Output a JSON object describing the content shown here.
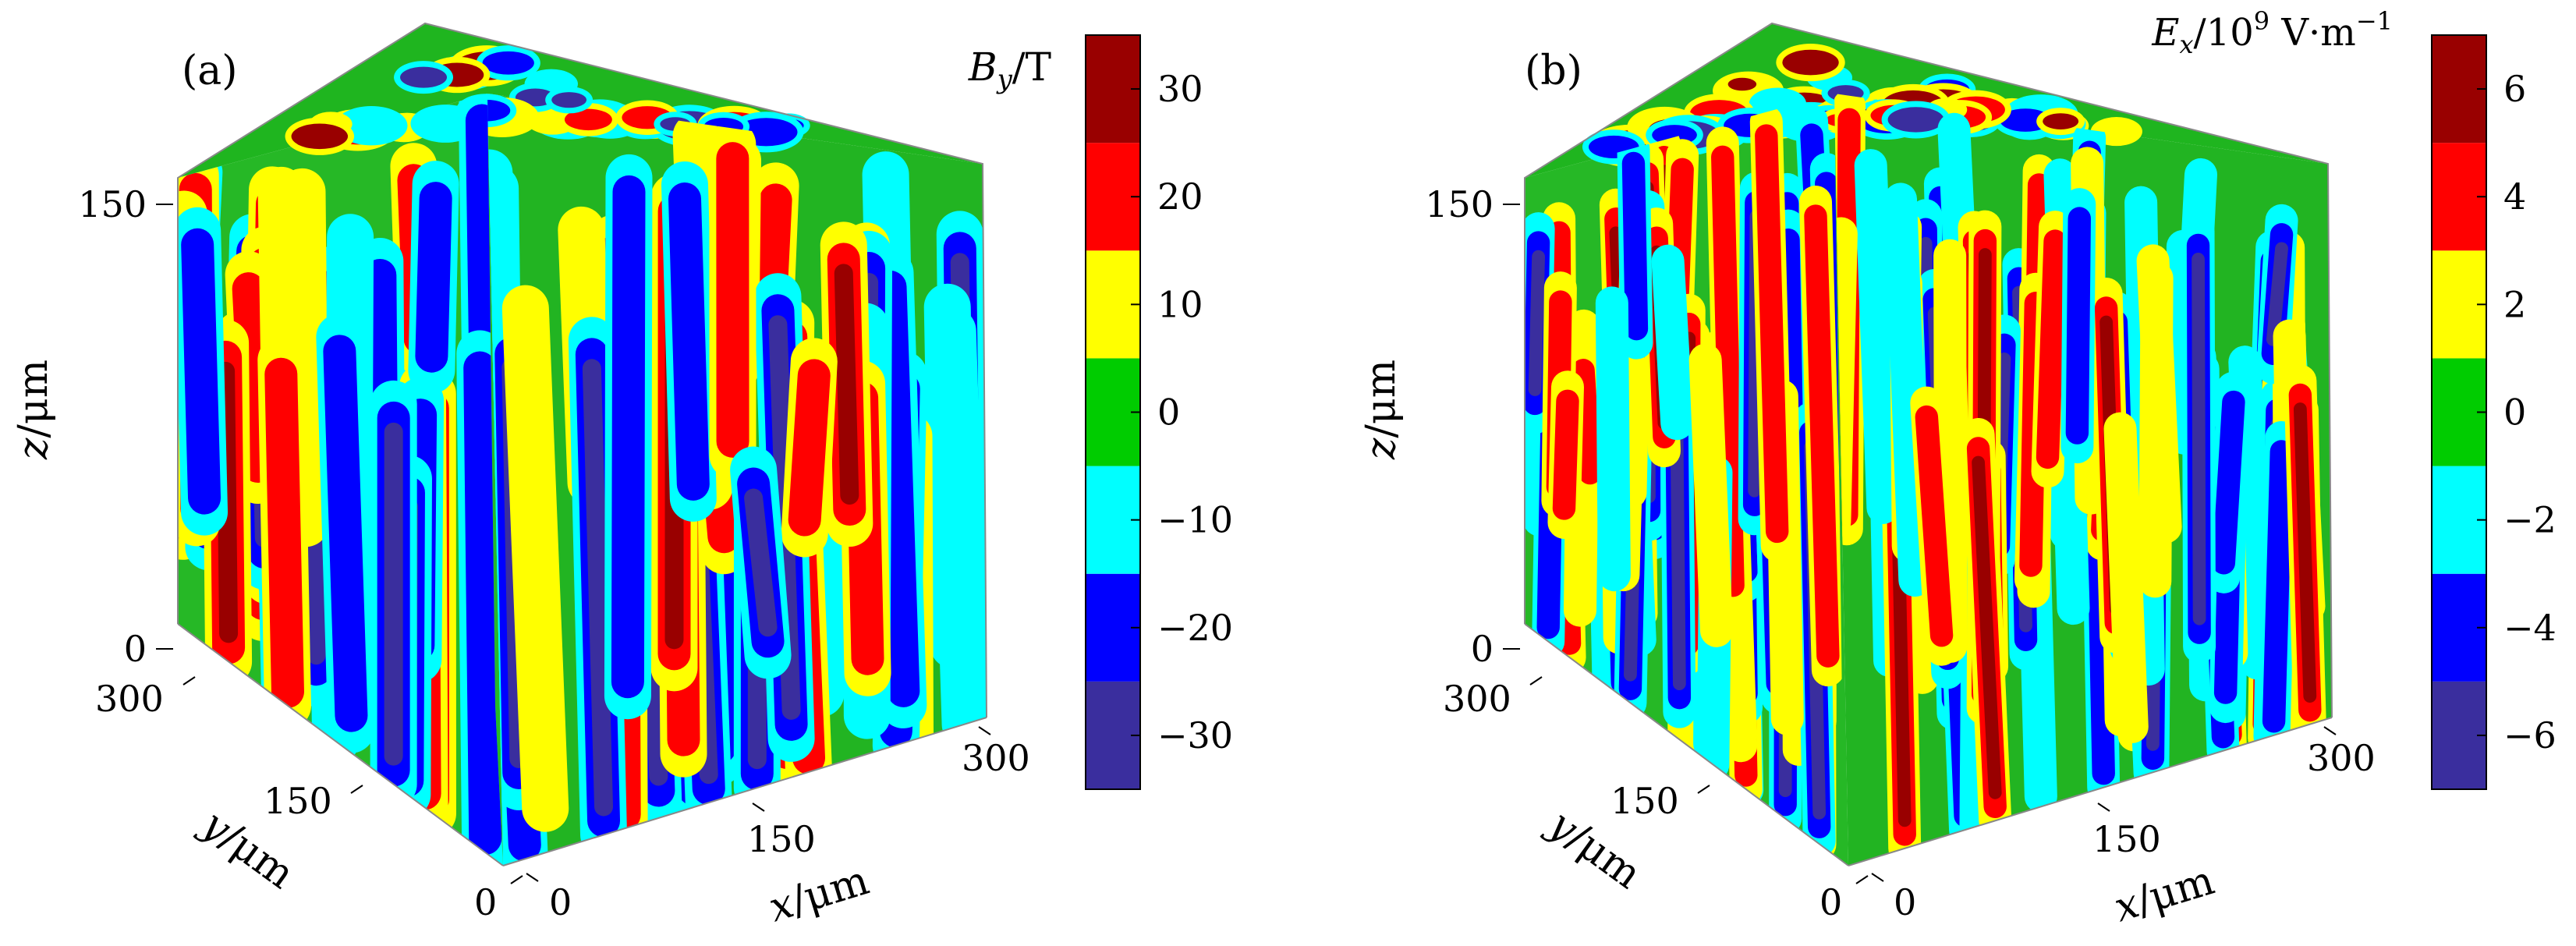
{
  "chart_data": [
    {
      "type": "heatmap",
      "panel_label": "(a)",
      "colorbar_title": "B_y/T",
      "colorbar_title_parts": {
        "sym": "B",
        "sub": "y",
        "unit": "/T"
      },
      "colorbar_levels": [
        -35,
        -25,
        -15,
        -5,
        5,
        15,
        25,
        35
      ],
      "colorbar_ticks": [
        30,
        20,
        10,
        0,
        -10,
        -20,
        -30
      ],
      "colorbar_tick_labels": [
        "30",
        "20",
        "10",
        "0",
        "−10",
        "−20",
        "−30"
      ],
      "x_axis": {
        "label": "x/μm",
        "ticks": [
          0,
          150,
          300
        ],
        "tick_labels": [
          "0",
          "150",
          "300"
        ]
      },
      "y_axis": {
        "label": "y/μm",
        "ticks": [
          0,
          150,
          300
        ],
        "tick_labels": [
          "0",
          "150",
          "300"
        ]
      },
      "z_axis": {
        "label": "z/μm",
        "ticks": [
          0,
          150
        ],
        "tick_labels": [
          "0",
          "150"
        ]
      }
    },
    {
      "type": "heatmap",
      "panel_label": "(b)",
      "colorbar_title": "E_x/10^9 V·m^-1",
      "colorbar_title_parts": {
        "sym": "E",
        "sub": "x",
        "unit": "/10",
        "exp": "9",
        "unit2": " V·m",
        "exp2": "−1"
      },
      "colorbar_levels": [
        -7,
        -5,
        -3,
        -1,
        1,
        3,
        5,
        7
      ],
      "colorbar_ticks": [
        6,
        4,
        2,
        0,
        -2,
        -4,
        -6
      ],
      "colorbar_tick_labels": [
        "6",
        "4",
        "2",
        "0",
        "−2",
        "−4",
        "−6"
      ],
      "x_axis": {
        "label": "x/μm",
        "ticks": [
          0,
          150,
          300
        ],
        "tick_labels": [
          "0",
          "150",
          "300"
        ]
      },
      "y_axis": {
        "label": "y/μm",
        "ticks": [
          0,
          150,
          300
        ],
        "tick_labels": [
          "0",
          "150",
          "300"
        ]
      },
      "z_axis": {
        "label": "z/μm",
        "ticks": [
          0,
          150
        ],
        "tick_labels": [
          "0",
          "150"
        ]
      }
    }
  ],
  "colormap": [
    "#3a2e9e",
    "#0000ff",
    "#00ffff",
    "#00cc00",
    "#ffff00",
    "#ff0000",
    "#990000"
  ]
}
